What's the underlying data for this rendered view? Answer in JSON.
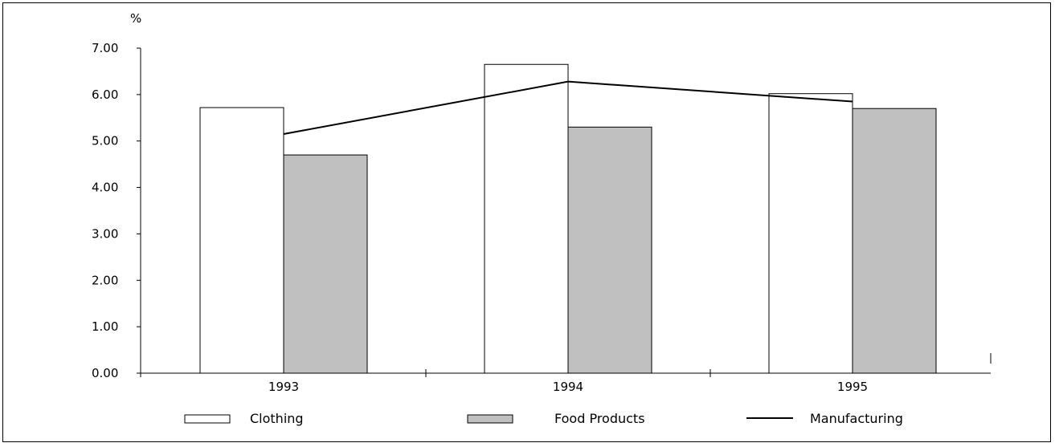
{
  "chart_data": {
    "type": "bar",
    "categories": [
      "1993",
      "1994",
      "1995"
    ],
    "series": [
      {
        "name": "Clothing",
        "kind": "bar",
        "values": [
          5.72,
          6.65,
          6.02
        ],
        "color": "#ffffff"
      },
      {
        "name": "Food Products",
        "kind": "bar",
        "values": [
          4.7,
          5.3,
          5.7
        ],
        "color": "#c0c0c0"
      },
      {
        "name": "Manufacturing",
        "kind": "line",
        "values": [
          5.15,
          6.28,
          5.85
        ],
        "color": "#000000"
      }
    ],
    "ylabel": "%",
    "ylim": [
      0,
      7
    ],
    "yticks": [
      "0.00",
      "1.00",
      "2.00",
      "3.00",
      "4.00",
      "5.00",
      "6.00",
      "7.00"
    ],
    "grid": false,
    "legend_position": "bottom"
  }
}
